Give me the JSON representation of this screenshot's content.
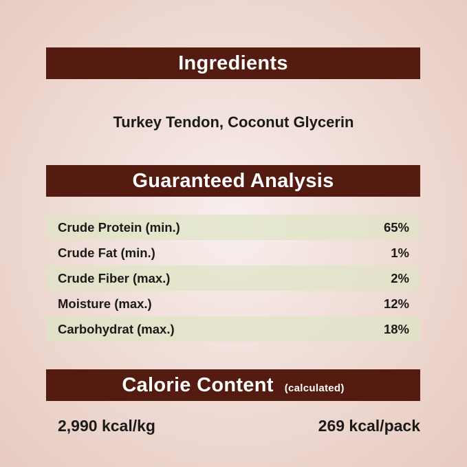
{
  "ingredients": {
    "heading": "Ingredients",
    "text": "Turkey Tendon, Coconut Glycerin"
  },
  "analysis": {
    "heading": "Guaranteed Analysis",
    "rows": [
      {
        "label": "Crude Protein (min.)",
        "value": "65%"
      },
      {
        "label": "Crude Fat (min.)",
        "value": "1%"
      },
      {
        "label": "Crude Fiber (max.)",
        "value": "2%"
      },
      {
        "label": "Moisture (max.)",
        "value": "12%"
      },
      {
        "label": "Carbohydrat (max.)",
        "value": "18%"
      }
    ]
  },
  "calorie": {
    "heading": "Calorie Content",
    "note": "(calculated)",
    "per_kg": "2,990 kcal/kg",
    "per_pack": "269 kcal/pack"
  },
  "colors": {
    "header_bar": "#541c10",
    "row_shade": "#dee4c4"
  }
}
